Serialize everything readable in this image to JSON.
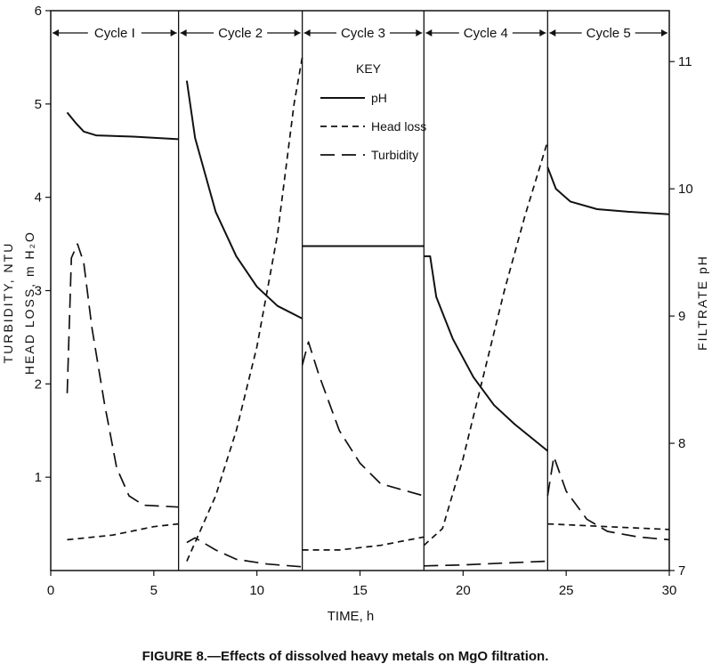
{
  "chart_data": {
    "type": "line",
    "caption": "FIGURE 8.—Effects of dissolved heavy metals on MgO filtration.",
    "xlabel": "TIME, h",
    "ylabel_left_1": "TURBIDITY, NTU",
    "ylabel_left_2": "HEAD LOSS, m H₂O",
    "ylabel_right": "FILTRATE pH",
    "xlim": [
      0,
      30
    ],
    "ylim_left": [
      0,
      6
    ],
    "ylim_right": [
      7,
      11.4
    ],
    "xticks": [
      "0",
      "5",
      "10",
      "15",
      "20",
      "25",
      "30"
    ],
    "yticks_left": [
      "1",
      "2",
      "3",
      "4",
      "5",
      "6"
    ],
    "yticks_right": [
      "7",
      "8",
      "9",
      "10",
      "11"
    ],
    "key_title": "KEY",
    "cycles": [
      {
        "label": "Cycle I",
        "start": 0,
        "end": 6.2
      },
      {
        "label": "Cycle 2",
        "start": 6.2,
        "end": 12.2
      },
      {
        "label": "Cycle 3",
        "start": 12.2,
        "end": 18.1
      },
      {
        "label": "Cycle 4",
        "start": 18.1,
        "end": 24.1
      },
      {
        "label": "Cycle 5",
        "start": 24.1,
        "end": 30
      }
    ],
    "series": [
      {
        "name": "pH",
        "axis": "right",
        "style": "solid",
        "segments": [
          [
            [
              0.8,
              10.6
            ],
            [
              1.2,
              10.52
            ],
            [
              1.6,
              10.45
            ],
            [
              2.2,
              10.42
            ],
            [
              4.0,
              10.41
            ],
            [
              6.2,
              10.39
            ]
          ],
          [
            [
              6.6,
              10.85
            ],
            [
              7.0,
              10.4
            ],
            [
              8.0,
              9.82
            ],
            [
              9.0,
              9.47
            ],
            [
              10.0,
              9.23
            ],
            [
              11.0,
              9.08
            ],
            [
              12.2,
              8.98
            ]
          ],
          [
            [
              12.2,
              9.55
            ],
            [
              18.1,
              9.55
            ]
          ],
          [
            [
              18.1,
              9.47
            ],
            [
              18.4,
              9.47
            ],
            [
              18.7,
              9.15
            ],
            [
              19.5,
              8.82
            ],
            [
              20.5,
              8.52
            ],
            [
              21.5,
              8.3
            ],
            [
              22.5,
              8.15
            ],
            [
              24.1,
              7.94
            ]
          ],
          [
            [
              24.1,
              10.17
            ],
            [
              24.5,
              10.0
            ],
            [
              25.2,
              9.9
            ],
            [
              26.5,
              9.84
            ],
            [
              28.0,
              9.82
            ],
            [
              30.0,
              9.8
            ]
          ]
        ]
      },
      {
        "name": "Head loss",
        "axis": "left",
        "style": "dashed",
        "segments": [
          [
            [
              0.8,
              0.33
            ],
            [
              3.0,
              0.38
            ],
            [
              5.0,
              0.47
            ],
            [
              6.2,
              0.5
            ]
          ],
          [
            [
              6.6,
              0.1
            ],
            [
              7.0,
              0.3
            ],
            [
              8.0,
              0.8
            ],
            [
              9.0,
              1.5
            ],
            [
              10.0,
              2.4
            ],
            [
              11.0,
              3.6
            ],
            [
              11.8,
              5.0
            ],
            [
              12.2,
              5.5
            ]
          ],
          [
            [
              12.2,
              0.22
            ],
            [
              14.0,
              0.22
            ],
            [
              16.0,
              0.27
            ],
            [
              18.1,
              0.36
            ]
          ],
          [
            [
              18.1,
              0.27
            ],
            [
              19.0,
              0.45
            ],
            [
              20.0,
              1.2
            ],
            [
              21.0,
              2.1
            ],
            [
              22.0,
              3.0
            ],
            [
              23.0,
              3.8
            ],
            [
              24.1,
              4.6
            ]
          ],
          [
            [
              24.1,
              0.5
            ],
            [
              27.0,
              0.47
            ],
            [
              30.0,
              0.44
            ]
          ]
        ]
      },
      {
        "name": "Turbidity",
        "axis": "left",
        "style": "longdash",
        "segments": [
          [
            [
              0.8,
              1.9
            ],
            [
              1.0,
              3.35
            ],
            [
              1.3,
              3.5
            ],
            [
              1.6,
              3.3
            ],
            [
              2.0,
              2.6
            ],
            [
              2.6,
              1.8
            ],
            [
              3.2,
              1.1
            ],
            [
              3.8,
              0.8
            ],
            [
              4.5,
              0.7
            ],
            [
              6.2,
              0.68
            ]
          ],
          [
            [
              6.6,
              0.3
            ],
            [
              7.0,
              0.35
            ],
            [
              8.0,
              0.22
            ],
            [
              9.0,
              0.12
            ],
            [
              10.5,
              0.07
            ],
            [
              12.2,
              0.04
            ]
          ],
          [
            [
              12.2,
              2.2
            ],
            [
              12.5,
              2.45
            ],
            [
              13.0,
              2.1
            ],
            [
              14.0,
              1.5
            ],
            [
              15.0,
              1.15
            ],
            [
              16.0,
              0.93
            ],
            [
              18.1,
              0.8
            ]
          ],
          [
            [
              18.1,
              0.05
            ],
            [
              20.0,
              0.06
            ],
            [
              22.0,
              0.08
            ],
            [
              24.1,
              0.1
            ]
          ],
          [
            [
              24.1,
              0.8
            ],
            [
              24.4,
              1.22
            ],
            [
              25.0,
              0.85
            ],
            [
              26.0,
              0.55
            ],
            [
              27.0,
              0.42
            ],
            [
              28.5,
              0.36
            ],
            [
              30.0,
              0.33
            ]
          ]
        ]
      }
    ]
  }
}
